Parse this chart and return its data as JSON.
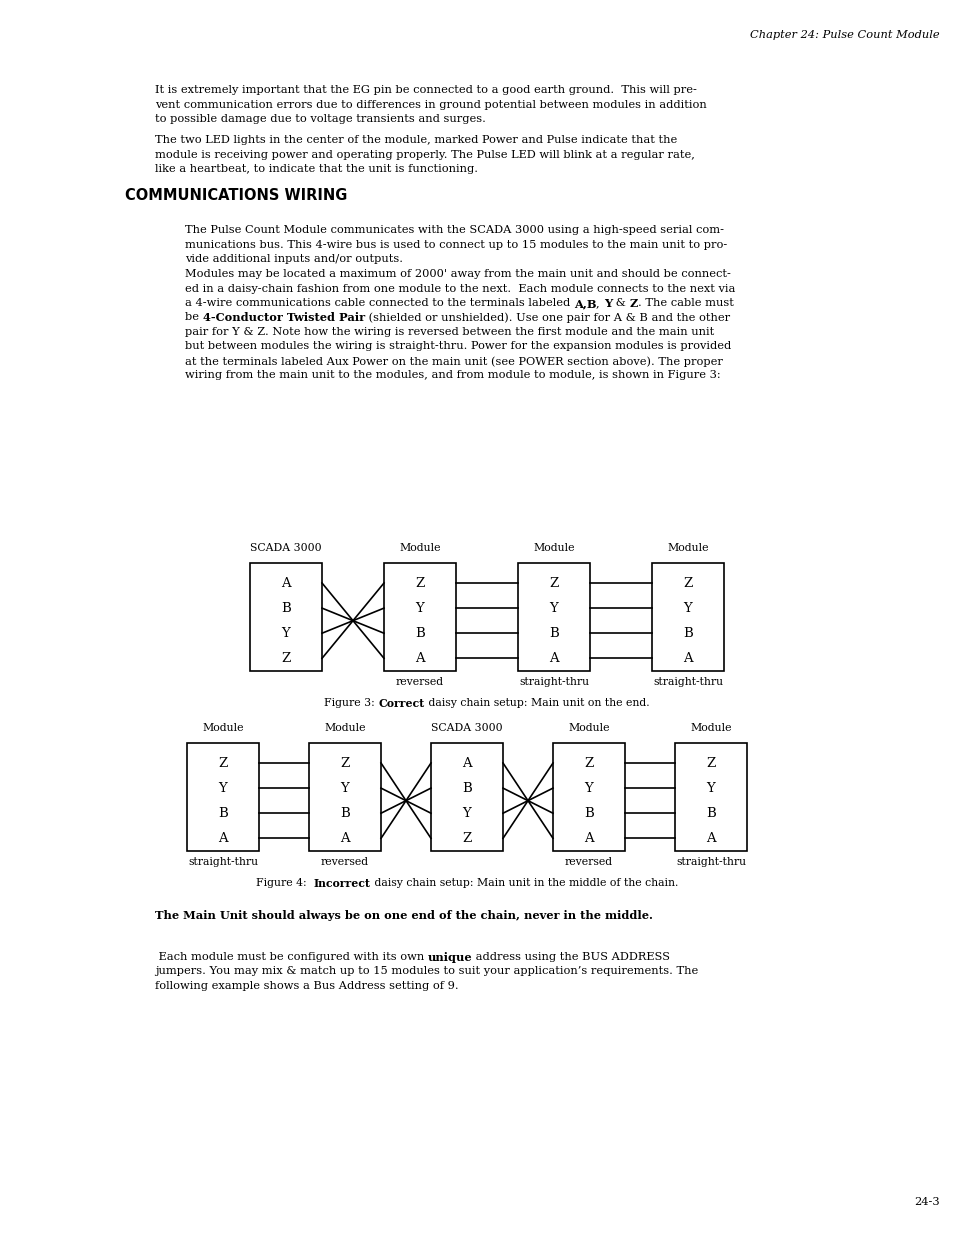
{
  "bg_color": "#ffffff",
  "page_width": 9.54,
  "page_height": 12.35,
  "chapter_header": "Chapter 24: Pulse Count Module",
  "para1": "It is extremely important that the EG pin be connected to a good earth ground.  This will pre-\nvent communication errors due to differences in ground potential between modules in addition\nto possible damage due to voltage transients and surges.",
  "para2": "The two LED lights in the center of the module, marked Power and Pulse indicate that the\nmodule is receiving power and operating properly. The Pulse LED will blink at a regular rate,\nlike a heartbeat, to indicate that the unit is functioning.",
  "section_title": "COMMUNICATIONS WIRING",
  "para3": "The Pulse Count Module communicates with the SCADA 3000 using a high-speed serial com-\nmunications bus. This 4-wire bus is used to connect up to 15 modules to the main unit to pro-\nvide additional inputs and/or outputs.",
  "para4_line1": "Modules may be located a maximum of 2000' away from the main unit and should be connect-",
  "para4_line2": "ed in a daisy-chain fashion from one module to the next.  Each module connects to the next via",
  "para4_line3a": "a 4-wire communications cable connected to the terminals labeled ",
  "para4_bold1": "A,B",
  "para4_line3b": ", ",
  "para4_bold2": "Y",
  "para4_line3c": " & ",
  "para4_bold3": "Z",
  "para4_line3d": ". The cable must",
  "para4_line4a": "be ",
  "para4_bold4": "4-Conductor Twisted Pair",
  "para4_line4b": " (shielded or unshielded). Use one pair for A & B and the other",
  "para4_line5": "pair for Y & Z. Note how the wiring is reversed between the first module and the main unit",
  "para4_line6": "but between modules the wiring is straight-thru. Power for the expansion modules is provided",
  "para4_line7": "at the terminals labeled Aux Power on the main unit (see POWER section above). The proper",
  "para4_line8": "wiring from the main unit to the modules, and from module to module, is shown in Figure 3:",
  "fig3_caption_normal1": "Figure 3: ",
  "fig3_caption_bold": "Correct",
  "fig3_caption_normal2": " daisy chain setup: Main unit on the end.",
  "fig4_caption_normal1": "Figure 4:  ",
  "fig4_caption_bold": "Incorrect",
  "fig4_caption_normal2": " daisy chain setup: Main unit in the middle of the chain.",
  "bold_line": "The Main Unit should always be on one end of the chain, never in the middle.",
  "para5_normal1": " Each module must be configured with its own ",
  "para5_bold": "unique",
  "para5_normal2": " address using the BUS ADDRESS",
  "para5_line2": "jumpers. You may mix & match up to 15 modules to suit your application’s requirements. The",
  "para5_line3": "following example shows a Bus Address setting of 9.",
  "page_number": "24-3"
}
